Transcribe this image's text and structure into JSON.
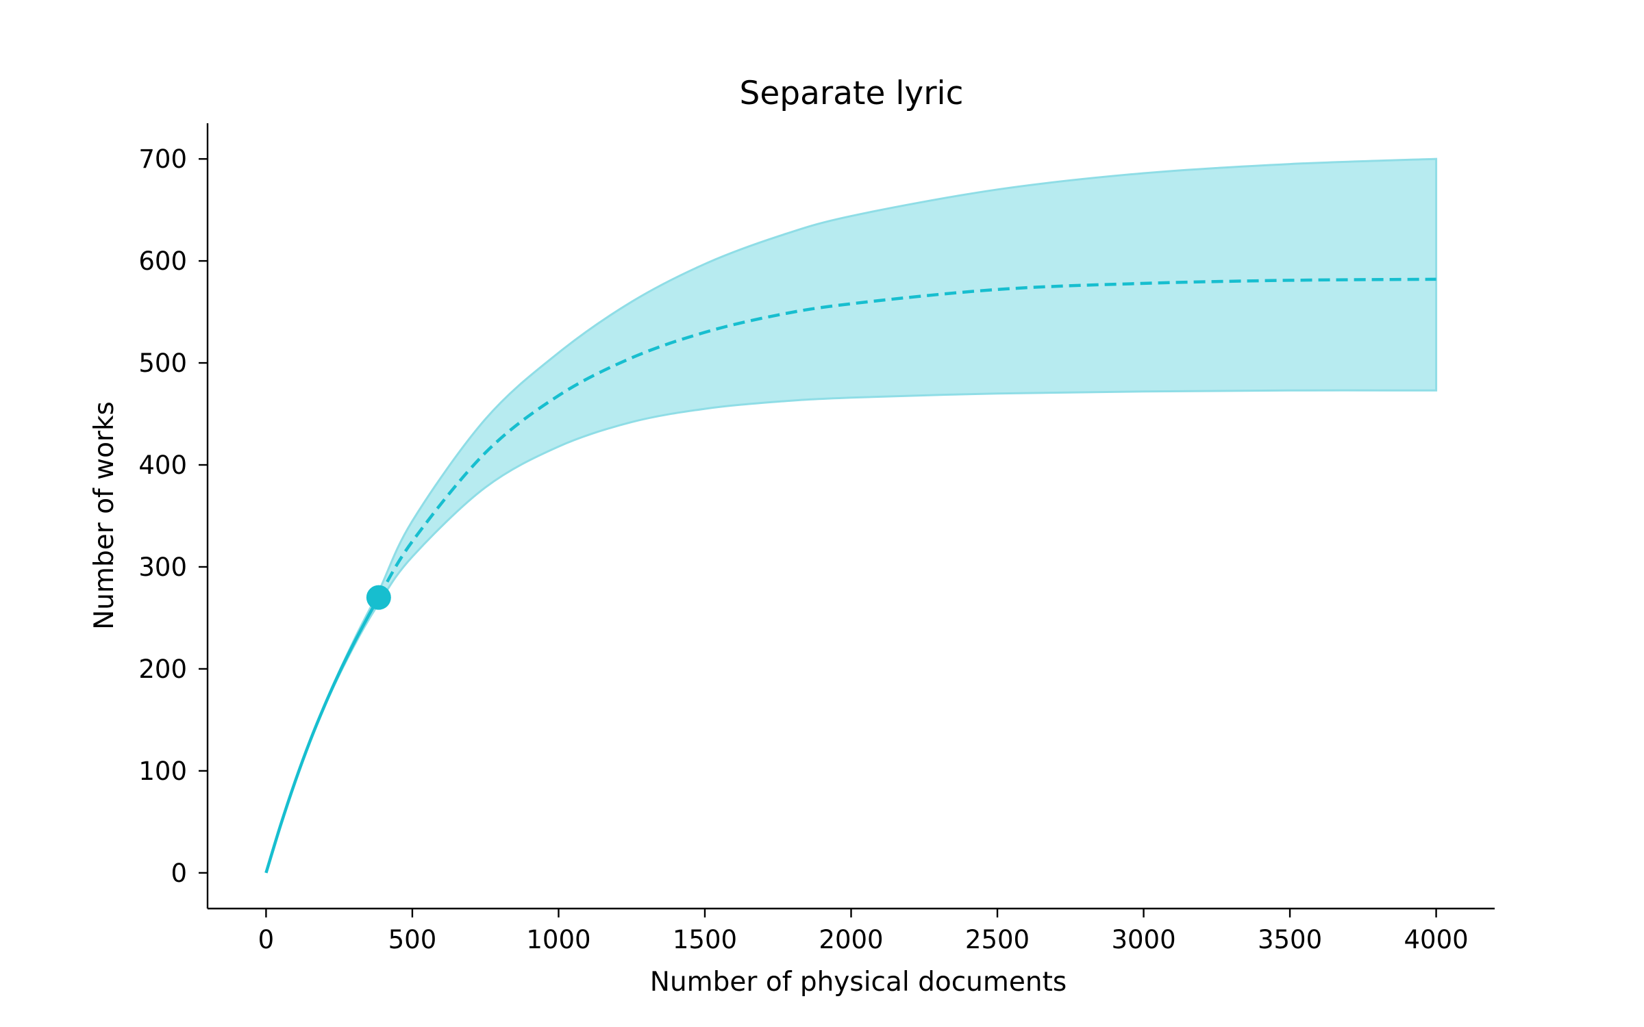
{
  "chart_data": {
    "type": "line",
    "title": "Separate lyric",
    "xlabel": "Number of physical documents",
    "ylabel": "Number of works",
    "xlim": [
      -200,
      4200
    ],
    "ylim": [
      -35,
      735
    ],
    "x_ticks": [
      0,
      500,
      1000,
      1500,
      2000,
      2500,
      3000,
      3500,
      4000
    ],
    "y_ticks": [
      0,
      100,
      200,
      300,
      400,
      500,
      600,
      700
    ],
    "grid": false,
    "color": "#17becf",
    "band_color": "#b7ebf0",
    "band_edge_color": "#8fdde6",
    "series": [
      {
        "style": "solid",
        "x": [
          0,
          50,
          100,
          150,
          200,
          250,
          300,
          350,
          385
        ],
        "y": [
          0,
          47,
          90,
          129,
          164,
          196,
          225,
          252,
          270
        ]
      },
      {
        "style": "dashed",
        "x": [
          385,
          500,
          750,
          1000,
          1250,
          1500,
          1750,
          2000,
          2500,
          3000,
          3500,
          4000
        ],
        "y": [
          270,
          325,
          412,
          468,
          505,
          530,
          547,
          558,
          572,
          578,
          581,
          582
        ]
      }
    ],
    "band": {
      "x": [
        0,
        100,
        200,
        300,
        385,
        500,
        750,
        1000,
        1250,
        1500,
        1750,
        2000,
        2500,
        3000,
        3500,
        4000
      ],
      "upper": [
        0,
        90,
        165,
        228,
        276,
        345,
        445,
        510,
        560,
        597,
        624,
        644,
        670,
        686,
        695,
        700
      ],
      "lower": [
        0,
        90,
        163,
        222,
        264,
        310,
        378,
        418,
        442,
        455,
        462,
        466,
        470,
        472,
        473,
        473
      ]
    },
    "marker": {
      "x": 385,
      "y": 270
    }
  }
}
